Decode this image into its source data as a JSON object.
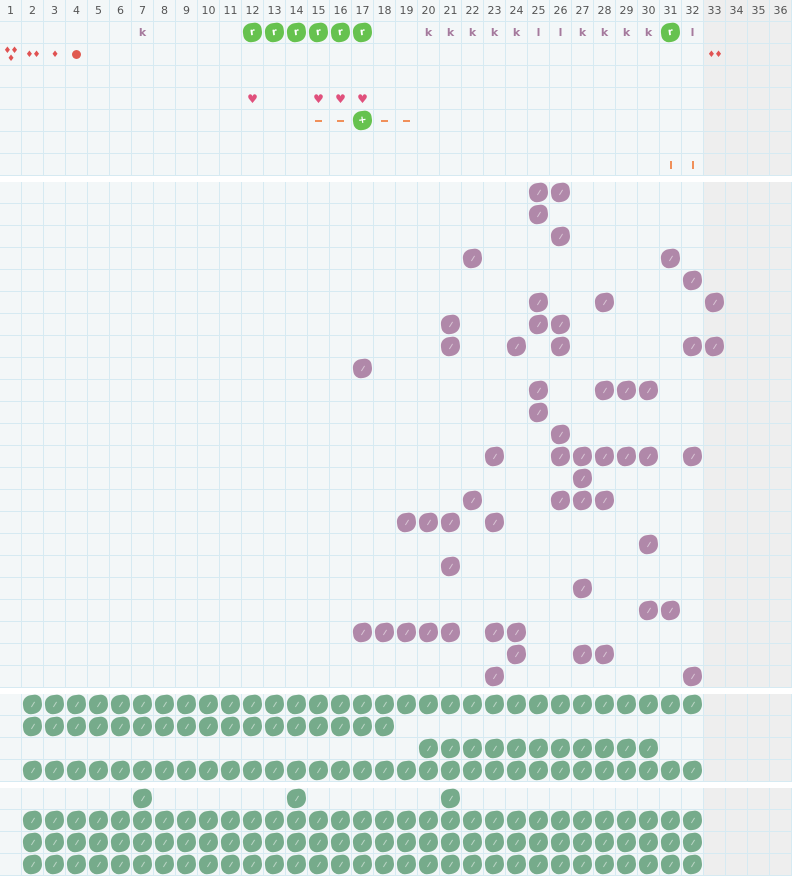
{
  "columns": [
    "1",
    "2",
    "3",
    "4",
    "5",
    "6",
    "7",
    "8",
    "9",
    "10",
    "11",
    "12",
    "13",
    "14",
    "15",
    "16",
    "17",
    "18",
    "19",
    "20",
    "21",
    "22",
    "23",
    "24",
    "25",
    "26",
    "27",
    "28",
    "29",
    "30",
    "31",
    "32",
    "33",
    "34",
    "35",
    "36"
  ],
  "shaded_columns": [
    33,
    34,
    35,
    36
  ],
  "colors": {
    "grid_bg": "#f3f7f8",
    "grid_line": "#d6eaf2",
    "shaded": "#eeeeee",
    "purple": "#b088a9",
    "green_dark": "#76ab8b",
    "green_bright": "#66c24f",
    "drop": "#e05252",
    "heart": "#e0507c",
    "orange": "#f0905a"
  },
  "sections": [
    {
      "name": "top",
      "rows": [
        [
          {
            "col": 7,
            "type": "letter",
            "text": "k"
          },
          {
            "col": 12,
            "type": "blob-green-bright",
            "text": "r"
          },
          {
            "col": 13,
            "type": "blob-green-bright",
            "text": "r"
          },
          {
            "col": 14,
            "type": "blob-green-bright",
            "text": "r"
          },
          {
            "col": 15,
            "type": "blob-green-bright",
            "text": "r"
          },
          {
            "col": 16,
            "type": "blob-green-bright",
            "text": "r"
          },
          {
            "col": 17,
            "type": "blob-green-bright",
            "text": "r"
          },
          {
            "col": 20,
            "type": "letter",
            "text": "k"
          },
          {
            "col": 21,
            "type": "letter",
            "text": "k"
          },
          {
            "col": 22,
            "type": "letter",
            "text": "k"
          },
          {
            "col": 23,
            "type": "letter",
            "text": "k"
          },
          {
            "col": 24,
            "type": "letter",
            "text": "k"
          },
          {
            "col": 25,
            "type": "letter",
            "text": "l"
          },
          {
            "col": 26,
            "type": "letter",
            "text": "l"
          },
          {
            "col": 27,
            "type": "letter",
            "text": "k"
          },
          {
            "col": 28,
            "type": "letter",
            "text": "k"
          },
          {
            "col": 29,
            "type": "letter",
            "text": "k"
          },
          {
            "col": 30,
            "type": "letter",
            "text": "k"
          },
          {
            "col": 31,
            "type": "blob-green-bright",
            "text": "r"
          },
          {
            "col": 32,
            "type": "letter",
            "text": "l"
          }
        ],
        [
          {
            "col": 1,
            "type": "drops",
            "count": 3
          },
          {
            "col": 2,
            "type": "drops",
            "count": 2
          },
          {
            "col": 3,
            "type": "drops",
            "count": 1
          },
          {
            "col": 4,
            "type": "circle"
          },
          {
            "col": 33,
            "type": "drops",
            "count": 2
          }
        ],
        [],
        [
          {
            "col": 12,
            "type": "heart"
          },
          {
            "col": 15,
            "type": "heart"
          },
          {
            "col": 16,
            "type": "heart"
          },
          {
            "col": 17,
            "type": "heart"
          }
        ],
        [
          {
            "col": 15,
            "type": "dash"
          },
          {
            "col": 16,
            "type": "dash"
          },
          {
            "col": 17,
            "type": "blob-green-bright",
            "text": "+"
          },
          {
            "col": 18,
            "type": "dash"
          },
          {
            "col": 19,
            "type": "dash"
          }
        ],
        [],
        [
          {
            "col": 31,
            "type": "bar"
          },
          {
            "col": 32,
            "type": "bar"
          }
        ]
      ]
    },
    {
      "name": "purple-field",
      "blob": "purple",
      "rows": [
        [
          25,
          26
        ],
        [
          25
        ],
        [
          26
        ],
        [
          22,
          31
        ],
        [
          32
        ],
        [
          25,
          28,
          33
        ],
        [
          21,
          25,
          26
        ],
        [
          21,
          24,
          26,
          32,
          33
        ],
        [
          17
        ],
        [
          25,
          28,
          29,
          30
        ],
        [
          25
        ],
        [
          26
        ],
        [
          23,
          26,
          27,
          28,
          29,
          30,
          32
        ],
        [
          27
        ],
        [
          22,
          26,
          27,
          28
        ],
        [
          19,
          20,
          21,
          23
        ],
        [
          30
        ],
        [
          21
        ],
        [
          27
        ],
        [
          30,
          31
        ],
        [
          17,
          18,
          19,
          20,
          21,
          23,
          24
        ],
        [
          24,
          27,
          28
        ],
        [
          23,
          32
        ]
      ]
    },
    {
      "name": "green-field-a",
      "blob": "green-dark",
      "rows": [
        [
          2,
          3,
          4,
          5,
          6,
          7,
          8,
          9,
          10,
          11,
          12,
          13,
          14,
          15,
          16,
          17,
          18,
          19,
          20,
          21,
          22,
          23,
          24,
          25,
          26,
          27,
          28,
          29,
          30,
          31,
          32
        ],
        [
          2,
          3,
          4,
          5,
          6,
          7,
          8,
          9,
          10,
          11,
          12,
          13,
          14,
          15,
          16,
          17,
          18
        ],
        [
          20,
          21,
          22,
          23,
          24,
          25,
          26,
          27,
          28,
          29,
          30
        ],
        [
          2,
          3,
          4,
          5,
          6,
          7,
          8,
          9,
          10,
          11,
          12,
          13,
          14,
          15,
          16,
          17,
          18,
          19,
          20,
          21,
          22,
          23,
          24,
          25,
          26,
          27,
          28,
          29,
          30,
          31,
          32
        ]
      ]
    },
    {
      "name": "green-field-b",
      "blob": "green-dark",
      "rows": [
        [
          7,
          14,
          21
        ],
        [
          2,
          3,
          4,
          5,
          6,
          7,
          8,
          9,
          10,
          11,
          12,
          13,
          14,
          15,
          16,
          17,
          18,
          19,
          20,
          21,
          22,
          23,
          24,
          25,
          26,
          27,
          28,
          29,
          30,
          31,
          32
        ],
        [
          2,
          3,
          4,
          5,
          6,
          7,
          8,
          9,
          10,
          11,
          12,
          13,
          14,
          15,
          16,
          17,
          18,
          19,
          20,
          21,
          22,
          23,
          24,
          25,
          26,
          27,
          28,
          29,
          30,
          31,
          32
        ],
        [
          2,
          3,
          4,
          5,
          6,
          7,
          8,
          9,
          10,
          11,
          12,
          13,
          14,
          15,
          16,
          17,
          18,
          19,
          20,
          21,
          22,
          23,
          24,
          25,
          26,
          27,
          28,
          29,
          30,
          31,
          32
        ]
      ]
    }
  ]
}
